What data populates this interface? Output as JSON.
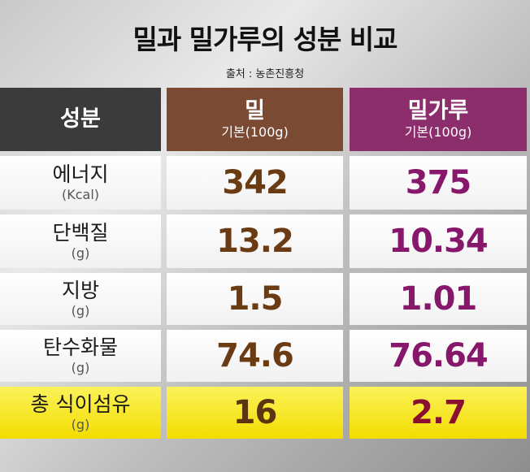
{
  "header": {
    "title": "밀과 밀가루의 성분 비교",
    "source": "출처 : 농촌진흥청"
  },
  "table": {
    "columns": [
      {
        "label": "성분"
      },
      {
        "label": "밀",
        "sub": "기본(100g)"
      },
      {
        "label": "밀가루",
        "sub": "기본(100g)"
      }
    ],
    "rows": [
      {
        "name": "에너지",
        "unit": "(Kcal)",
        "wheat": 342,
        "flour": 375
      },
      {
        "name": "단백질",
        "unit": "(g)",
        "wheat": 13.2,
        "flour": 10.34
      },
      {
        "name": "지방",
        "unit": "(g)",
        "wheat": 1.5,
        "flour": 1.01
      },
      {
        "name": "탄수화물",
        "unit": "(g)",
        "wheat": 74.6,
        "flour": 76.64
      },
      {
        "name": "총 식이섬유",
        "unit": "(g)",
        "wheat": 16,
        "flour": 2.7
      }
    ]
  }
}
